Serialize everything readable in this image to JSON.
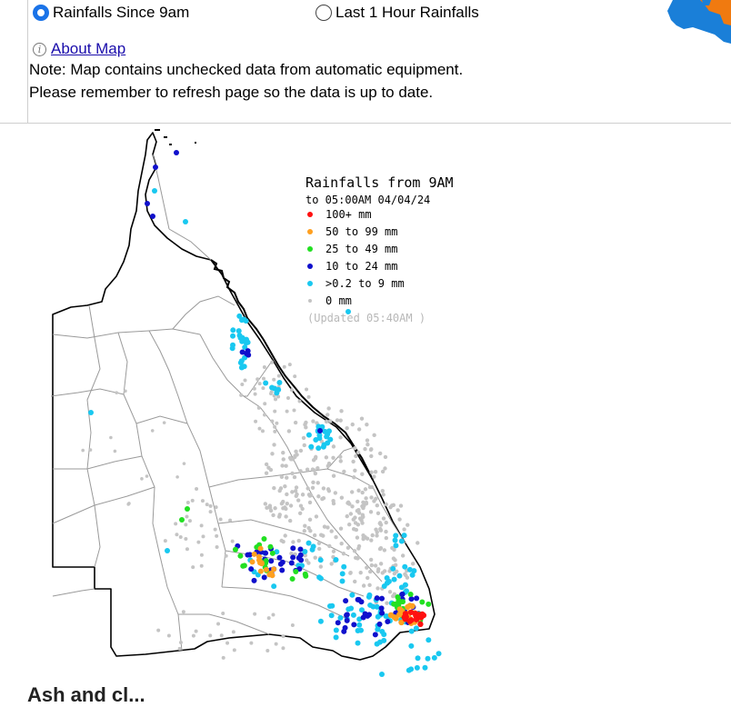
{
  "options": {
    "since9am": {
      "label": "Rainfalls Since 9am",
      "checked": true
    },
    "last1hour": {
      "label": "Last 1 Hour Rainfalls",
      "checked": false
    }
  },
  "about": {
    "icon": "info-icon",
    "link": "About Map"
  },
  "notes": {
    "line1": "Note: Map contains unchecked data from automatic equipment.",
    "line2": "Please remember to refresh page so the data is up to date."
  },
  "map": {
    "title": "Rainfalls from 9AM",
    "subtitle": "to 05:00AM 04/04/24",
    "legend": [
      {
        "label": "100+ mm",
        "color": "#ff1010"
      },
      {
        "label": "50  to 99 mm",
        "color": "#ffa020"
      },
      {
        "label": "25  to 49 mm",
        "color": "#22e022"
      },
      {
        "label": "10  to 24 mm",
        "color": "#1010cc"
      },
      {
        "label": ">0.2 to 9 mm",
        "color": "#19c8f0"
      },
      {
        "label": "0 mm",
        "color": "#c4c4c4"
      }
    ],
    "updated": "(Updated 05:40AM  )"
  },
  "bottom": {
    "heading": "Ash and cl..."
  }
}
